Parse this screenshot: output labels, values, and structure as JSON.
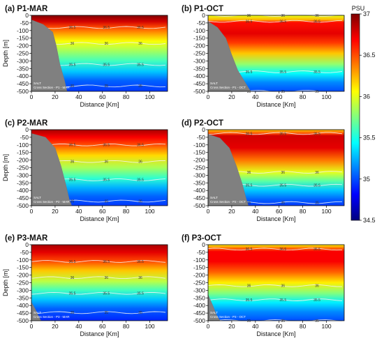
{
  "colorbar": {
    "title": "PSU",
    "min": 34.5,
    "max": 37,
    "ticks": [
      "37",
      "36.5",
      "36",
      "35.5",
      "35",
      "34.5"
    ],
    "colormap": [
      "#00007f",
      "#0000ff",
      "#0080ff",
      "#00ffff",
      "#80ff80",
      "#ffff00",
      "#ff8000",
      "#ff0000",
      "#7f0000"
    ],
    "land_color": "#808080"
  },
  "chart_data": [
    {
      "type": "heatmap",
      "title": "(a) P1-MAR",
      "xlabel": "Distance [Km]",
      "ylabel": "Depth [m]",
      "xlim": [
        0,
        115
      ],
      "ylim": [
        -500,
        0
      ],
      "xticks": [
        "0",
        "20",
        "40",
        "60",
        "80",
        "100"
      ],
      "yticks": [
        "0",
        "-50",
        "-100",
        "-150",
        "-200",
        "-250",
        "-300",
        "-350",
        "-400",
        "-450",
        "-500"
      ],
      "annotation_line1": "SALT",
      "annotation_line2": "Cross Section - P1 - MAR",
      "contour_levels": [
        35,
        35.5,
        36,
        36.5
      ],
      "salinity_profile": [
        [
          0,
          37.0
        ],
        [
          -40,
          36.8
        ],
        [
          -80,
          36.5
        ],
        [
          -120,
          36.3
        ],
        [
          -170,
          36.05
        ],
        [
          -230,
          35.85
        ],
        [
          -300,
          35.6
        ],
        [
          -370,
          35.3
        ],
        [
          -430,
          35.05
        ],
        [
          -500,
          34.95
        ]
      ],
      "slope": [
        [
          0,
          -30
        ],
        [
          10,
          -60
        ],
        [
          18,
          -110
        ],
        [
          21,
          -200
        ],
        [
          24,
          -320
        ],
        [
          28,
          -430
        ],
        [
          30,
          -500
        ]
      ]
    },
    {
      "type": "heatmap",
      "title": "(b) P1-OCT",
      "xlabel": "Distance [Km]",
      "ylabel": "",
      "xlim": [
        0,
        115
      ],
      "ylim": [
        -500,
        0
      ],
      "xticks": [
        "0",
        "20",
        "40",
        "60",
        "80",
        "100"
      ],
      "yticks": [
        "0",
        "-50",
        "-100",
        "-150",
        "-200",
        "-250",
        "-300",
        "-350",
        "-400",
        "-450",
        "-500"
      ],
      "annotation_line1": "SALT",
      "annotation_line2": "Cross Section - P1 - OCT",
      "contour_levels": [
        35,
        35.5,
        36,
        36.5
      ],
      "salinity_profile": [
        [
          0,
          36.0
        ],
        [
          -30,
          36.25
        ],
        [
          -45,
          36.65
        ],
        [
          -120,
          36.75
        ],
        [
          -180,
          36.55
        ],
        [
          -250,
          36.2
        ],
        [
          -320,
          35.8
        ],
        [
          -380,
          35.45
        ],
        [
          -440,
          35.15
        ],
        [
          -500,
          35.0
        ]
      ],
      "slope": [
        [
          0,
          -40
        ],
        [
          8,
          -80
        ],
        [
          15,
          -150
        ],
        [
          20,
          -260
        ],
        [
          25,
          -360
        ],
        [
          32,
          -450
        ],
        [
          36,
          -500
        ]
      ]
    },
    {
      "type": "heatmap",
      "title": "(c) P2-MAR",
      "xlabel": "Distance [Km]",
      "ylabel": "Depth [m]",
      "xlim": [
        0,
        115
      ],
      "ylim": [
        -500,
        0
      ],
      "xticks": [
        "0",
        "20",
        "40",
        "60",
        "80",
        "100"
      ],
      "yticks": [
        "0",
        "-50",
        "-100",
        "-150",
        "-200",
        "-250",
        "-300",
        "-350",
        "-400",
        "-450",
        "-500"
      ],
      "annotation_line1": "SALT",
      "annotation_line2": "Cross Section - P2 - MAR",
      "contour_levels": [
        35,
        35.5,
        36,
        36.5
      ],
      "salinity_profile": [
        [
          0,
          36.9
        ],
        [
          -50,
          36.7
        ],
        [
          -100,
          36.5
        ],
        [
          -170,
          36.15
        ],
        [
          -250,
          35.85
        ],
        [
          -320,
          35.55
        ],
        [
          -380,
          35.25
        ],
        [
          -440,
          35.05
        ],
        [
          -500,
          34.95
        ]
      ],
      "slope": [
        [
          0,
          -25
        ],
        [
          12,
          -50
        ],
        [
          20,
          -120
        ],
        [
          25,
          -240
        ],
        [
          29,
          -360
        ],
        [
          32,
          -460
        ],
        [
          34,
          -500
        ]
      ]
    },
    {
      "type": "heatmap",
      "title": "(d) P2-OCT",
      "xlabel": "Distance [Km]",
      "ylabel": "",
      "xlim": [
        0,
        115
      ],
      "ylim": [
        -500,
        0
      ],
      "xticks": [
        "0",
        "20",
        "40",
        "60",
        "80",
        "100"
      ],
      "yticks": [
        "0",
        "-50",
        "-100",
        "-150",
        "-200",
        "-250",
        "-300",
        "-350",
        "-400",
        "-450",
        "-500"
      ],
      "annotation_line1": "SALT",
      "annotation_line2": "Cross Section - P2 - OCT",
      "contour_levels": [
        35,
        35.5,
        36,
        36.5
      ],
      "salinity_profile": [
        [
          0,
          36.2
        ],
        [
          -25,
          36.5
        ],
        [
          -40,
          36.8
        ],
        [
          -120,
          36.75
        ],
        [
          -200,
          36.4
        ],
        [
          -280,
          36.0
        ],
        [
          -340,
          35.65
        ],
        [
          -400,
          35.3
        ],
        [
          -460,
          35.05
        ],
        [
          -500,
          34.95
        ]
      ],
      "slope": [
        [
          0,
          -30
        ],
        [
          10,
          -55
        ],
        [
          18,
          -120
        ],
        [
          24,
          -240
        ],
        [
          29,
          -360
        ],
        [
          32,
          -450
        ],
        [
          34,
          -500
        ]
      ]
    },
    {
      "type": "heatmap",
      "title": "(e) P3-MAR",
      "xlabel": "Distance [Km]",
      "ylabel": "Depth [m]",
      "xlim": [
        0,
        115
      ],
      "ylim": [
        -500,
        0
      ],
      "xticks": [
        "0",
        "20",
        "40",
        "60",
        "80",
        "100"
      ],
      "yticks": [
        "0",
        "-50",
        "-100",
        "-150",
        "-200",
        "-250",
        "-300",
        "-350",
        "-400",
        "-450",
        "-500"
      ],
      "annotation_line1": "SALT",
      "annotation_line2": "Cross Section - P3 - MAR",
      "contour_levels": [
        35,
        35.5,
        36,
        36.5
      ],
      "salinity_profile": [
        [
          0,
          36.9
        ],
        [
          -50,
          36.75
        ],
        [
          -110,
          36.5
        ],
        [
          -170,
          36.2
        ],
        [
          -240,
          35.9
        ],
        [
          -300,
          35.6
        ],
        [
          -360,
          35.3
        ],
        [
          -420,
          35.05
        ],
        [
          -500,
          34.9
        ]
      ],
      "slope": [
        [
          0,
          -380
        ],
        [
          3,
          -420
        ],
        [
          6,
          -470
        ],
        [
          8,
          -500
        ]
      ]
    },
    {
      "type": "heatmap",
      "title": "(f) P3-OCT",
      "xlabel": "Distance [Km]",
      "ylabel": "",
      "xlim": [
        0,
        115
      ],
      "ylim": [
        -500,
        0
      ],
      "xticks": [
        "0",
        "20",
        "40",
        "60",
        "80",
        "100"
      ],
      "yticks": [
        "0",
        "-50",
        "-100",
        "-150",
        "-200",
        "-250",
        "-300",
        "-350",
        "-400",
        "-450",
        "-500"
      ],
      "annotation_line1": "SALT",
      "annotation_line2": "Cross Section - P3 - OCT",
      "contour_levels": [
        35,
        35.5,
        36,
        36.5
      ],
      "salinity_profile": [
        [
          0,
          36.1
        ],
        [
          -25,
          36.45
        ],
        [
          -45,
          36.7
        ],
        [
          -110,
          36.7
        ],
        [
          -180,
          36.45
        ],
        [
          -250,
          36.1
        ],
        [
          -320,
          35.75
        ],
        [
          -380,
          35.4
        ],
        [
          -440,
          35.15
        ],
        [
          -500,
          35.0
        ]
      ],
      "slope": [
        [
          0,
          -330
        ],
        [
          4,
          -400
        ],
        [
          7,
          -460
        ],
        [
          10,
          -500
        ]
      ]
    }
  ]
}
